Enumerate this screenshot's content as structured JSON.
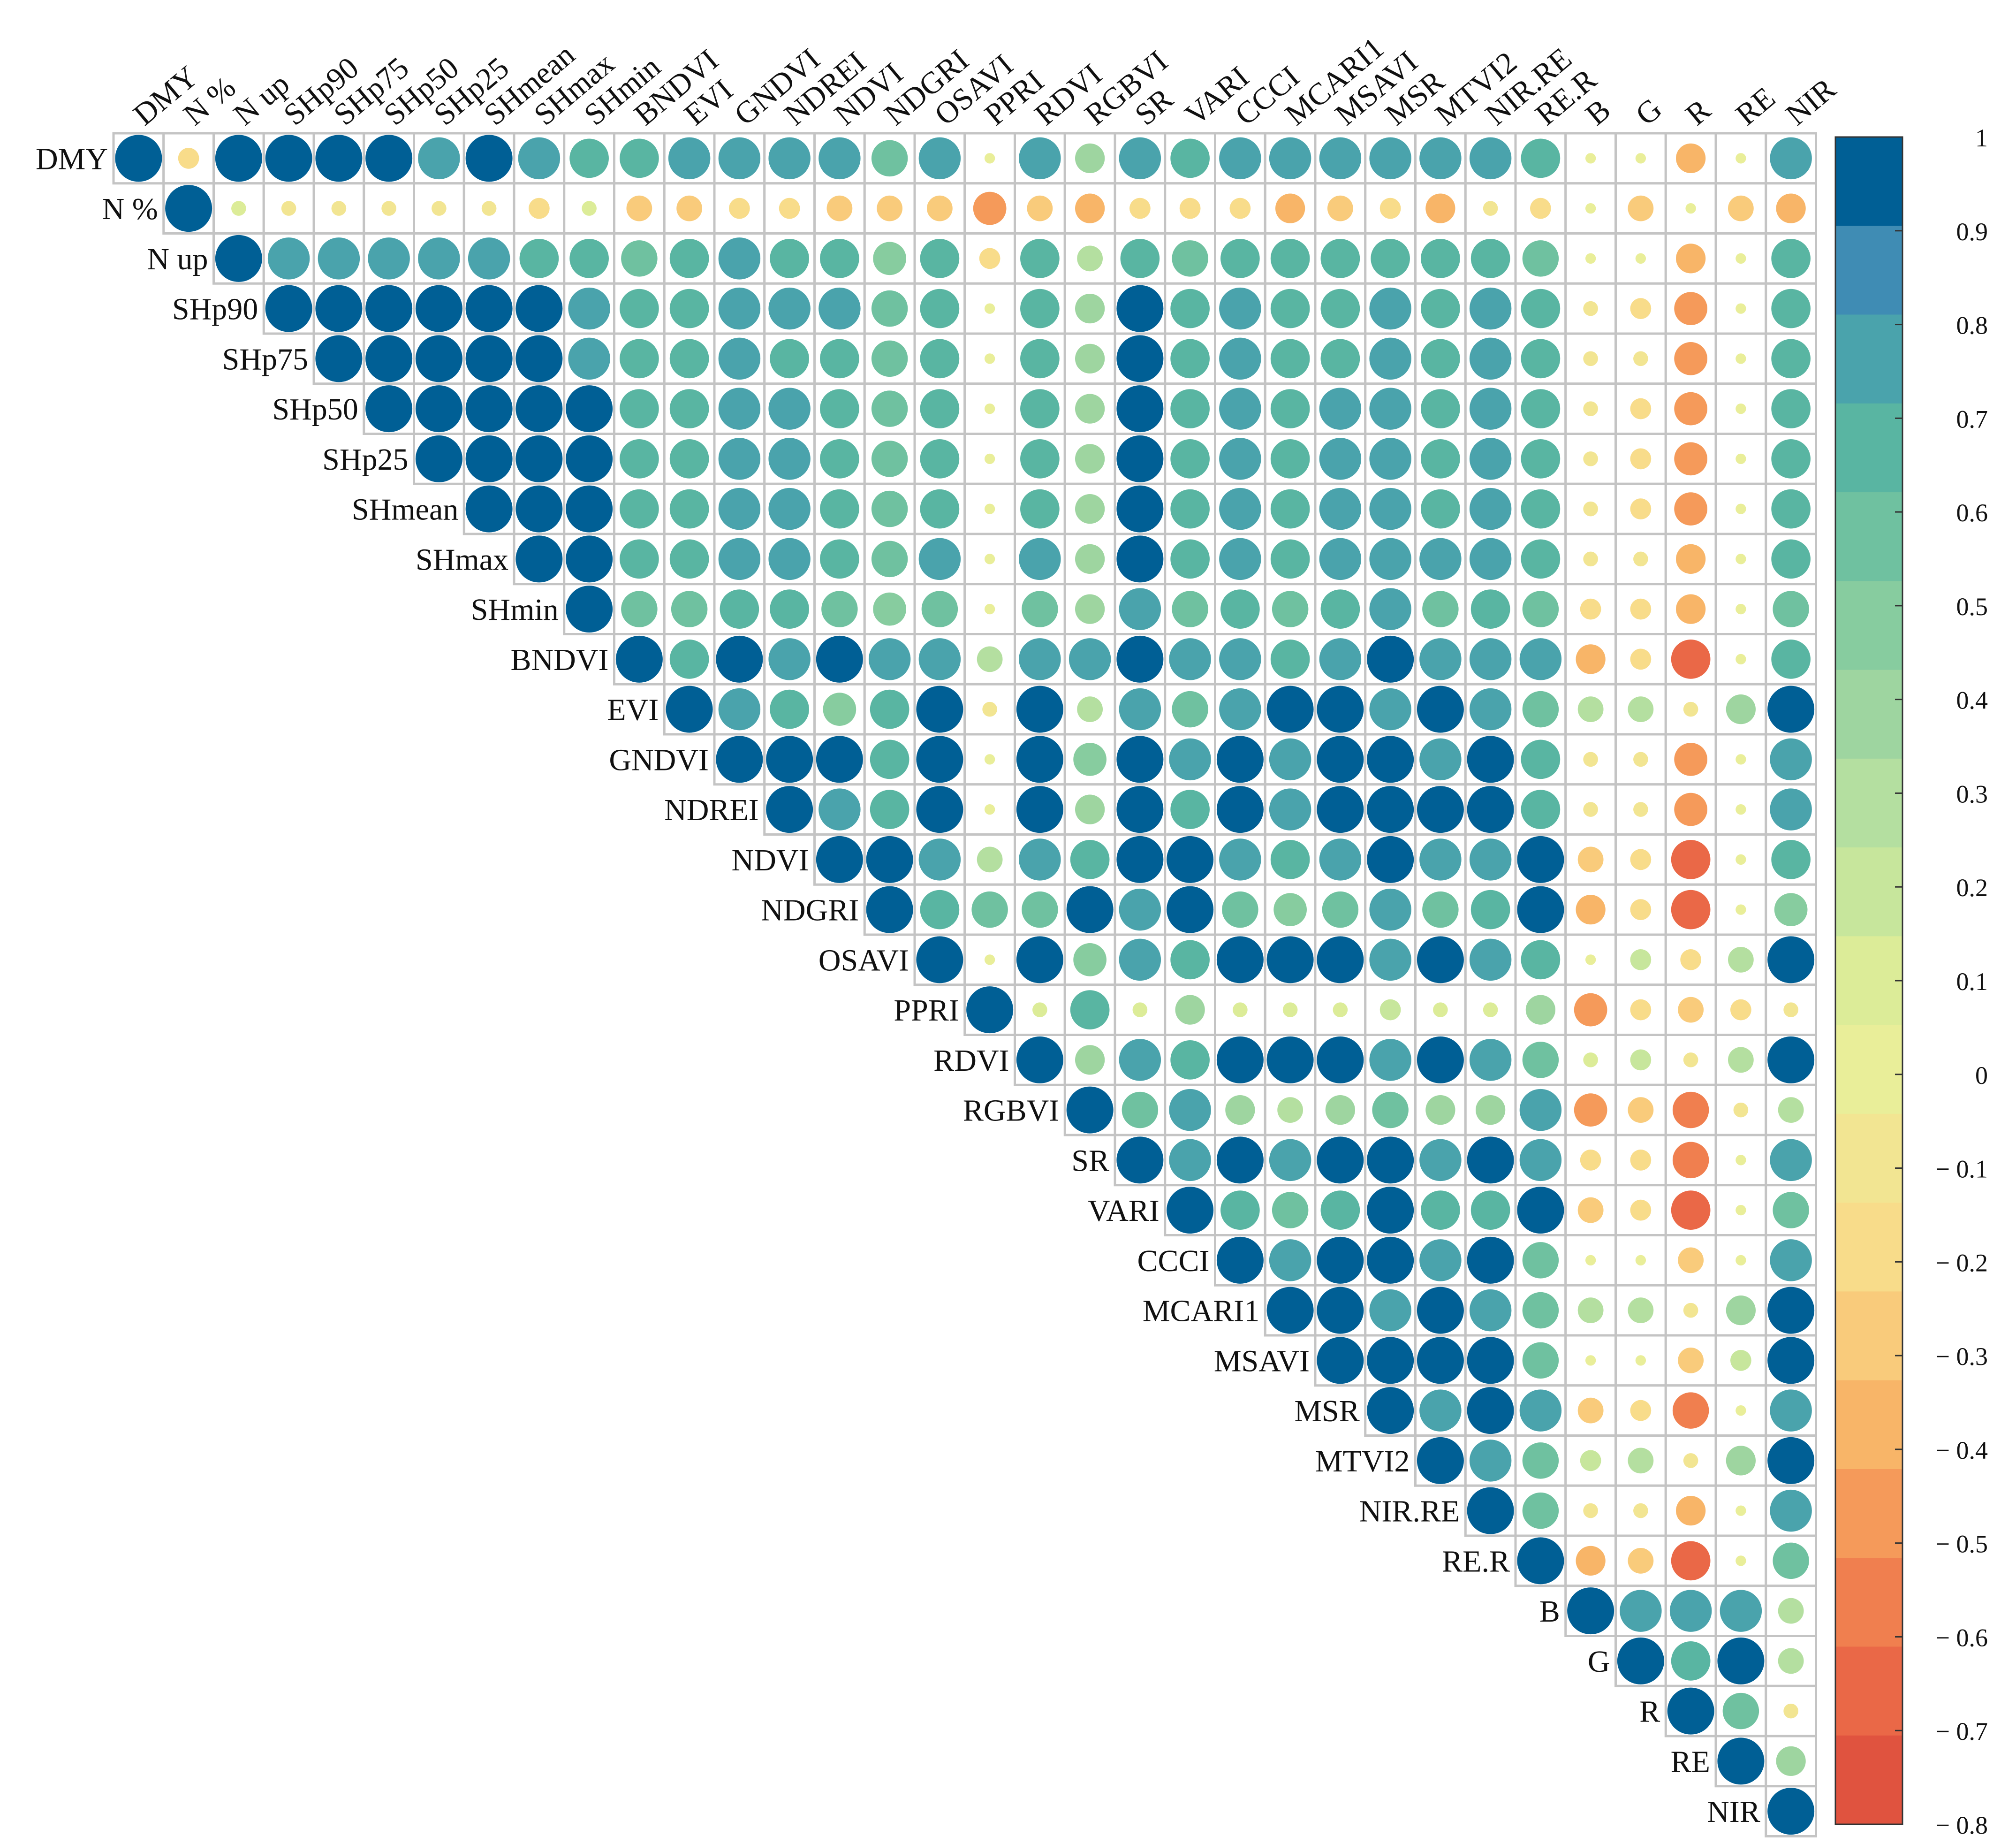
{
  "chart_data": {
    "type": "heatmap",
    "style": "upper-triangular correlation matrix, circle size and colour encode coefficient",
    "labels": [
      "DMY",
      "N %",
      "N up",
      "SHp90",
      "SHp75",
      "SHp50",
      "SHp25",
      "SHmean",
      "SHmax",
      "SHmin",
      "BNDVI",
      "EVI",
      "GNDVI",
      "NDREI",
      "NDVI",
      "NDGRI",
      "OSAVI",
      "PPRI",
      "RDVI",
      "RGBVI",
      "SR",
      "VARI",
      "CCCI",
      "MCARI1",
      "MSAVI",
      "MSR",
      "MTVI2",
      "NIR.RE",
      "RE.R",
      "B",
      "G",
      "R",
      "RE",
      "NIR"
    ],
    "matrix": [
      [
        1,
        -0.2,
        1,
        1,
        1,
        1,
        0.8,
        1,
        0.8,
        0.7,
        0.7,
        0.8,
        0.8,
        0.8,
        0.8,
        0.6,
        0.8,
        0.05,
        0.8,
        0.4,
        0.8,
        0.7,
        0.8,
        0.8,
        0.8,
        0.8,
        0.8,
        0.8,
        0.7,
        0.05,
        0.05,
        -0.4,
        0.05,
        0.8
      ],
      [
        -0.2,
        1,
        0.1,
        -0.1,
        -0.1,
        -0.1,
        -0.1,
        -0.1,
        -0.2,
        0.1,
        -0.3,
        -0.3,
        -0.2,
        -0.2,
        -0.3,
        -0.3,
        -0.3,
        -0.5,
        -0.3,
        -0.4,
        -0.2,
        -0.2,
        -0.2,
        -0.4,
        -0.3,
        -0.2,
        -0.4,
        -0.1,
        -0.2,
        0.05,
        -0.3,
        0.05,
        -0.3,
        -0.4
      ],
      [
        1,
        0.1,
        1,
        0.8,
        0.8,
        0.8,
        0.8,
        0.8,
        0.7,
        0.7,
        0.6,
        0.7,
        0.8,
        0.7,
        0.7,
        0.5,
        0.7,
        -0.2,
        0.7,
        0.3,
        0.7,
        0.6,
        0.7,
        0.7,
        0.7,
        0.7,
        0.7,
        0.7,
        0.6,
        0.05,
        0.05,
        -0.4,
        0.05,
        0.7
      ],
      [
        1,
        -0.1,
        0.8,
        1,
        1,
        1,
        1,
        1,
        1,
        0.8,
        0.7,
        0.7,
        0.8,
        0.8,
        0.8,
        0.6,
        0.7,
        0.05,
        0.7,
        0.4,
        1,
        0.7,
        0.8,
        0.7,
        0.7,
        0.8,
        0.7,
        0.8,
        0.7,
        -0.1,
        -0.2,
        -0.5,
        0.05,
        0.7
      ],
      [
        1,
        -0.1,
        0.8,
        1,
        1,
        1,
        1,
        1,
        1,
        0.8,
        0.7,
        0.7,
        0.8,
        0.7,
        0.7,
        0.6,
        0.7,
        0.05,
        0.7,
        0.4,
        1,
        0.7,
        0.8,
        0.7,
        0.7,
        0.8,
        0.7,
        0.8,
        0.7,
        -0.1,
        -0.1,
        -0.5,
        0.05,
        0.7
      ],
      [
        1,
        -0.1,
        0.8,
        1,
        1,
        1,
        1,
        1,
        1,
        1,
        0.7,
        0.7,
        0.8,
        0.8,
        0.7,
        0.6,
        0.7,
        0.05,
        0.7,
        0.4,
        1,
        0.7,
        0.8,
        0.7,
        0.8,
        0.8,
        0.7,
        0.8,
        0.7,
        -0.1,
        -0.2,
        -0.5,
        0.05,
        0.7
      ],
      [
        0.8,
        -0.1,
        0.8,
        1,
        1,
        1,
        1,
        1,
        1,
        1,
        0.7,
        0.7,
        0.8,
        0.8,
        0.7,
        0.6,
        0.7,
        0.05,
        0.7,
        0.4,
        1,
        0.7,
        0.8,
        0.7,
        0.8,
        0.8,
        0.7,
        0.8,
        0.7,
        -0.1,
        -0.2,
        -0.5,
        0.05,
        0.7
      ],
      [
        1,
        -0.1,
        0.8,
        1,
        1,
        1,
        1,
        1,
        1,
        1,
        0.7,
        0.7,
        0.8,
        0.8,
        0.7,
        0.6,
        0.7,
        0.05,
        0.7,
        0.4,
        1,
        0.7,
        0.8,
        0.7,
        0.8,
        0.8,
        0.7,
        0.8,
        0.7,
        -0.1,
        -0.2,
        -0.5,
        0.05,
        0.7
      ],
      [
        0.8,
        -0.2,
        0.7,
        1,
        1,
        1,
        1,
        1,
        1,
        1,
        0.7,
        0.7,
        0.8,
        0.8,
        0.7,
        0.6,
        0.8,
        0.05,
        0.8,
        0.4,
        1,
        0.7,
        0.8,
        0.7,
        0.8,
        0.8,
        0.8,
        0.8,
        0.7,
        -0.1,
        -0.1,
        -0.4,
        0.05,
        0.7
      ],
      [
        0.7,
        0.1,
        0.7,
        0.8,
        0.8,
        1,
        1,
        1,
        1,
        1,
        0.6,
        0.6,
        0.7,
        0.7,
        0.6,
        0.5,
        0.6,
        0.05,
        0.6,
        0.4,
        0.8,
        0.6,
        0.7,
        0.6,
        0.7,
        0.8,
        0.6,
        0.7,
        0.6,
        -0.2,
        -0.2,
        -0.4,
        0.05,
        0.6
      ],
      [
        0.7,
        -0.3,
        0.6,
        0.7,
        0.7,
        0.7,
        0.7,
        0.7,
        0.7,
        0.6,
        1,
        0.7,
        1,
        0.8,
        1,
        0.8,
        0.8,
        0.3,
        0.8,
        0.8,
        1,
        0.8,
        0.8,
        0.7,
        0.8,
        1,
        0.8,
        0.8,
        0.8,
        -0.4,
        -0.2,
        -0.7,
        0.05,
        0.7
      ],
      [
        0.8,
        -0.3,
        0.7,
        0.7,
        0.7,
        0.7,
        0.7,
        0.7,
        0.7,
        0.6,
        0.7,
        1,
        0.8,
        0.7,
        0.5,
        0.7,
        1,
        -0.1,
        1,
        0.3,
        0.8,
        0.6,
        0.8,
        1,
        1,
        0.8,
        1,
        0.8,
        0.6,
        0.3,
        0.3,
        -0.1,
        0.4,
        1
      ],
      [
        0.8,
        -0.2,
        0.8,
        0.8,
        0.8,
        0.8,
        0.8,
        0.8,
        0.8,
        0.7,
        1,
        0.8,
        1,
        1,
        1,
        0.7,
        1,
        0.05,
        1,
        0.5,
        1,
        0.8,
        1,
        0.8,
        1,
        1,
        0.8,
        1,
        0.7,
        -0.1,
        -0.1,
        -0.5,
        0.05,
        0.8
      ],
      [
        0.8,
        -0.2,
        0.7,
        0.8,
        0.7,
        0.8,
        0.8,
        0.8,
        0.8,
        0.7,
        0.8,
        0.7,
        1,
        1,
        0.8,
        0.7,
        1,
        0.05,
        1,
        0.4,
        1,
        0.7,
        1,
        0.8,
        1,
        1,
        1,
        1,
        0.7,
        -0.1,
        -0.1,
        -0.5,
        0.05,
        0.8
      ],
      [
        0.8,
        -0.3,
        0.7,
        0.8,
        0.7,
        0.7,
        0.7,
        0.7,
        0.7,
        0.6,
        1,
        0.5,
        1,
        0.8,
        1,
        1,
        0.8,
        0.3,
        0.8,
        0.7,
        1,
        1,
        0.8,
        0.7,
        0.8,
        1,
        0.8,
        0.8,
        1,
        -0.3,
        -0.2,
        -0.7,
        0.05,
        0.7
      ],
      [
        0.6,
        -0.3,
        0.5,
        0.6,
        0.6,
        0.6,
        0.6,
        0.6,
        0.6,
        0.5,
        0.8,
        0.7,
        0.7,
        0.7,
        1,
        1,
        0.7,
        0.6,
        0.6,
        1,
        0.8,
        1,
        0.6,
        0.5,
        0.6,
        0.8,
        0.6,
        0.7,
        1,
        -0.4,
        -0.2,
        -0.7,
        0.05,
        0.5
      ],
      [
        0.8,
        -0.3,
        0.7,
        0.7,
        0.7,
        0.7,
        0.7,
        0.7,
        0.8,
        0.6,
        0.8,
        1,
        1,
        1,
        0.8,
        0.7,
        1,
        0.05,
        1,
        0.5,
        0.8,
        0.7,
        1,
        1,
        1,
        0.8,
        1,
        0.8,
        0.7,
        0.05,
        0.2,
        -0.2,
        0.3,
        1
      ],
      [
        0.05,
        -0.5,
        -0.2,
        0.05,
        0.05,
        0.05,
        0.05,
        0.05,
        0.05,
        0.05,
        0.3,
        -0.1,
        0.05,
        0.05,
        0.3,
        0.6,
        0.05,
        1,
        0.1,
        0.7,
        0.1,
        0.4,
        0.1,
        0.1,
        0.1,
        0.2,
        0.1,
        0.1,
        0.4,
        -0.5,
        -0.2,
        -0.3,
        -0.2,
        -0.1
      ],
      [
        0.8,
        -0.3,
        0.7,
        0.7,
        0.7,
        0.7,
        0.7,
        0.7,
        0.8,
        0.6,
        0.8,
        1,
        1,
        1,
        0.8,
        0.6,
        1,
        0.1,
        1,
        0.4,
        0.8,
        0.7,
        1,
        1,
        1,
        0.8,
        1,
        0.8,
        0.6,
        0.1,
        0.2,
        -0.1,
        0.3,
        1
      ],
      [
        0.4,
        -0.4,
        0.3,
        0.4,
        0.4,
        0.4,
        0.4,
        0.4,
        0.4,
        0.4,
        0.8,
        0.3,
        0.5,
        0.4,
        0.7,
        1,
        0.5,
        0.7,
        0.4,
        1,
        0.6,
        0.8,
        0.4,
        0.3,
        0.4,
        0.6,
        0.4,
        0.4,
        0.8,
        -0.5,
        -0.3,
        -0.6,
        -0.1,
        0.3
      ],
      [
        0.8,
        -0.2,
        0.7,
        1,
        1,
        1,
        1,
        1,
        1,
        0.8,
        1,
        0.8,
        1,
        1,
        1,
        0.8,
        0.8,
        0.1,
        0.8,
        0.6,
        1,
        0.8,
        1,
        0.8,
        1,
        1,
        0.8,
        1,
        0.8,
        -0.2,
        -0.2,
        -0.6,
        0.05,
        0.8
      ],
      [
        0.7,
        -0.2,
        0.6,
        0.7,
        0.7,
        0.7,
        0.7,
        0.7,
        0.7,
        0.6,
        0.8,
        0.6,
        0.8,
        0.7,
        1,
        1,
        0.7,
        0.4,
        0.7,
        0.8,
        0.8,
        1,
        0.7,
        0.6,
        0.7,
        1,
        0.7,
        0.7,
        1,
        -0.3,
        -0.2,
        -0.7,
        0.05,
        0.6
      ],
      [
        0.8,
        -0.2,
        0.7,
        0.8,
        0.8,
        0.8,
        0.8,
        0.8,
        0.8,
        0.7,
        0.8,
        0.8,
        1,
        1,
        0.8,
        0.6,
        1,
        0.1,
        1,
        0.4,
        1,
        0.7,
        1,
        0.8,
        1,
        1,
        0.8,
        1,
        0.6,
        0.05,
        0.05,
        -0.3,
        0.05,
        0.8
      ],
      [
        0.8,
        -0.4,
        0.7,
        0.7,
        0.7,
        0.7,
        0.7,
        0.7,
        0.7,
        0.6,
        0.7,
        1,
        0.8,
        0.8,
        0.7,
        0.5,
        1,
        0.1,
        1,
        0.3,
        0.8,
        0.6,
        0.8,
        1,
        1,
        0.8,
        1,
        0.8,
        0.6,
        0.3,
        0.3,
        -0.1,
        0.4,
        1
      ],
      [
        0.8,
        -0.3,
        0.7,
        0.7,
        0.7,
        0.8,
        0.8,
        0.8,
        0.8,
        0.7,
        0.8,
        1,
        1,
        1,
        0.8,
        0.6,
        1,
        0.1,
        1,
        0.4,
        1,
        0.7,
        1,
        1,
        1,
        1,
        1,
        1,
        0.6,
        0.05,
        0.05,
        -0.3,
        0.2,
        1
      ],
      [
        0.8,
        -0.2,
        0.7,
        0.8,
        0.8,
        0.8,
        0.8,
        0.8,
        0.8,
        0.8,
        1,
        0.8,
        1,
        1,
        1,
        0.8,
        0.8,
        0.2,
        0.8,
        0.6,
        1,
        1,
        1,
        0.8,
        1,
        1,
        0.8,
        1,
        0.8,
        -0.3,
        -0.2,
        -0.6,
        0.05,
        0.8
      ],
      [
        0.8,
        -0.4,
        0.7,
        0.7,
        0.7,
        0.7,
        0.7,
        0.7,
        0.8,
        0.6,
        0.8,
        1,
        0.8,
        1,
        0.8,
        0.6,
        1,
        0.1,
        1,
        0.4,
        0.8,
        0.7,
        0.8,
        1,
        1,
        0.8,
        1,
        0.8,
        0.6,
        0.2,
        0.3,
        -0.1,
        0.4,
        1
      ],
      [
        0.8,
        -0.1,
        0.7,
        0.8,
        0.8,
        0.8,
        0.8,
        0.8,
        0.8,
        0.7,
        0.8,
        0.8,
        1,
        1,
        0.8,
        0.7,
        0.8,
        0.1,
        0.8,
        0.4,
        1,
        0.7,
        1,
        0.8,
        1,
        1,
        0.8,
        1,
        0.6,
        -0.1,
        -0.1,
        -0.4,
        0.05,
        0.8
      ],
      [
        0.7,
        -0.2,
        0.6,
        0.7,
        0.7,
        0.7,
        0.7,
        0.7,
        0.7,
        0.6,
        0.8,
        0.6,
        0.7,
        0.7,
        1,
        1,
        0.7,
        0.4,
        0.6,
        0.8,
        0.8,
        1,
        0.6,
        0.6,
        0.6,
        0.8,
        0.6,
        0.6,
        1,
        -0.4,
        -0.3,
        -0.7,
        0.05,
        0.6
      ],
      [
        0.05,
        0.05,
        0.05,
        -0.1,
        -0.1,
        -0.1,
        -0.1,
        -0.1,
        -0.1,
        -0.2,
        -0.4,
        0.3,
        -0.1,
        -0.1,
        -0.3,
        -0.4,
        0.05,
        -0.5,
        0.1,
        -0.5,
        -0.2,
        -0.3,
        0.05,
        0.3,
        0.05,
        -0.3,
        0.2,
        -0.1,
        -0.4,
        1,
        0.8,
        0.8,
        0.8,
        0.3
      ],
      [
        0.05,
        -0.3,
        0.05,
        -0.2,
        -0.1,
        -0.2,
        -0.2,
        -0.2,
        -0.1,
        -0.2,
        -0.2,
        0.3,
        -0.1,
        -0.1,
        -0.2,
        -0.2,
        0.2,
        -0.2,
        0.2,
        -0.3,
        -0.2,
        -0.2,
        0.05,
        0.3,
        0.05,
        -0.2,
        0.3,
        -0.1,
        -0.3,
        0.8,
        1,
        0.7,
        1,
        0.3
      ],
      [
        -0.4,
        0.05,
        -0.4,
        -0.5,
        -0.5,
        -0.5,
        -0.5,
        -0.5,
        -0.4,
        -0.4,
        -0.7,
        -0.1,
        -0.5,
        -0.5,
        -0.7,
        -0.7,
        -0.2,
        -0.3,
        -0.1,
        -0.6,
        -0.6,
        -0.7,
        -0.3,
        -0.1,
        -0.3,
        -0.6,
        -0.1,
        -0.4,
        -0.7,
        0.8,
        0.7,
        1,
        0.6,
        -0.1
      ],
      [
        0.05,
        -0.3,
        0.05,
        0.05,
        0.05,
        0.05,
        0.05,
        0.05,
        0.05,
        0.05,
        0.05,
        0.4,
        0.05,
        0.05,
        0.05,
        0.05,
        0.3,
        -0.2,
        0.3,
        -0.1,
        0.05,
        0.05,
        0.05,
        0.4,
        0.2,
        0.05,
        0.4,
        0.05,
        0.05,
        0.8,
        1,
        0.6,
        1,
        0.4
      ],
      [
        0.8,
        -0.4,
        0.7,
        0.7,
        0.7,
        0.7,
        0.7,
        0.7,
        0.7,
        0.6,
        0.7,
        1,
        0.8,
        0.8,
        0.7,
        0.5,
        1,
        -0.1,
        1,
        0.3,
        0.8,
        0.6,
        0.8,
        1,
        1,
        0.8,
        1,
        0.8,
        0.6,
        0.3,
        0.3,
        -0.1,
        0.4,
        1
      ]
    ],
    "colorbar": {
      "range": [
        -0.8,
        1
      ],
      "step": 0.1,
      "ticks": [
        "1",
        "0.9",
        "0.8",
        "0.7",
        "0.6",
        "0.5",
        "0.4",
        "0.3",
        "0.2",
        "0.1",
        "0",
        "− 0.1",
        "− 0.2",
        "− 0.3",
        "− 0.4",
        "− 0.5",
        "− 0.6",
        "− 0.7",
        "− 0.8"
      ],
      "palette": [
        "#e0533f",
        "#ea6847",
        "#f07f4f",
        "#f59a5a",
        "#f8b568",
        "#f9cb7b",
        "#f8dc8a",
        "#f2e592",
        "#e9ee99",
        "#dcec98",
        "#c7e69c",
        "#b4dfa0",
        "#9ed5a0",
        "#87cc9f",
        "#6fc1a0",
        "#59b5a2",
        "#4aa3ac",
        "#3f8cb4",
        "#005f95"
      ]
    },
    "legend_position": "right"
  }
}
